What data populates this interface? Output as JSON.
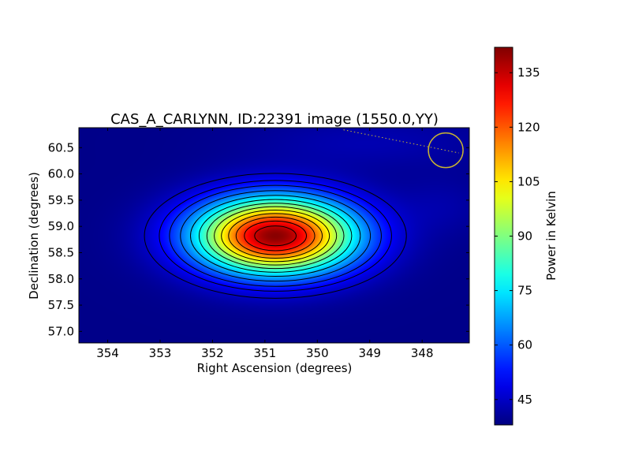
{
  "chart_data": {
    "type": "heatmap",
    "title": "CAS_A_CARLYNN, ID:22391 image (1550.0,YY)",
    "xlabel": "Right Ascension (degrees)",
    "ylabel": "Declination (degrees)",
    "xlim": [
      354.55,
      347.1
    ],
    "ylim": [
      56.78,
      60.88
    ],
    "x_ticks": [
      354,
      353,
      352,
      351,
      350,
      349,
      348
    ],
    "x_tick_labels": [
      "354",
      "353",
      "352",
      "351",
      "350",
      "349",
      "348"
    ],
    "y_ticks": [
      57.0,
      57.5,
      58.0,
      58.5,
      59.0,
      59.5,
      60.0,
      60.5
    ],
    "y_tick_labels": [
      "57.0",
      "57.5",
      "58.0",
      "58.5",
      "59.0",
      "59.5",
      "60.0",
      "60.5"
    ],
    "source": {
      "ra": 350.8,
      "dec": 58.82,
      "peak_kelvin": 141,
      "sigma_ra": 1.05,
      "sigma_dec": 0.5
    },
    "background_kelvin": 39,
    "contour_levels": [
      45,
      50,
      55,
      62,
      70,
      78,
      86,
      94,
      102,
      110,
      118,
      126,
      134
    ],
    "marker_circle": {
      "ra": 347.55,
      "dec": 60.45,
      "radius_deg": 0.33,
      "color": "#c8b432"
    },
    "dotted_line": {
      "from": [
        349.5,
        60.84
      ],
      "to": [
        347.3,
        60.4
      ],
      "color": "#c8b432"
    },
    "colorbar": {
      "label": "Power in Kelvin",
      "range": [
        38,
        142
      ],
      "ticks": [
        45,
        60,
        75,
        90,
        105,
        120,
        135
      ],
      "tick_labels": [
        "45",
        "60",
        "75",
        "90",
        "105",
        "120",
        "135"
      ],
      "colormap": "jet"
    }
  }
}
